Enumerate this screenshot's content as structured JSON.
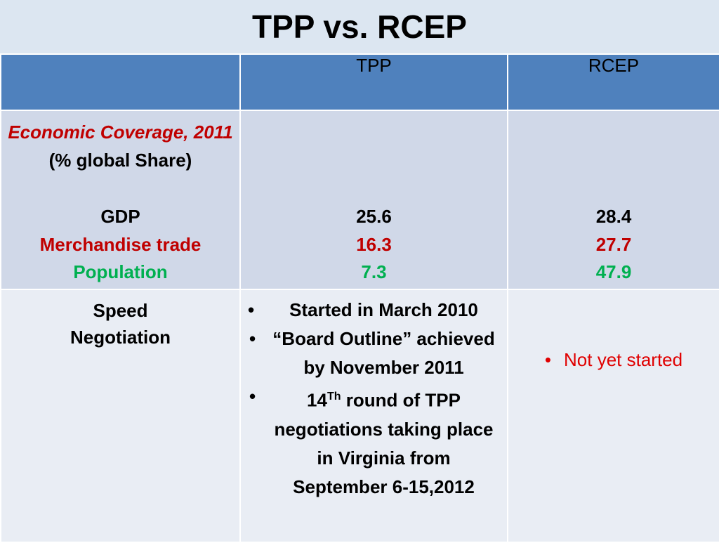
{
  "title": "TPP vs. RCEP",
  "header": {
    "col1": "",
    "col2": "TPP",
    "col3": "RCEP"
  },
  "row1": {
    "coverage_italic": "Economic Coverage, 2011",
    "coverage_rest": "(% global Share)",
    "gdp_label": "GDP",
    "merch_label": "Merchandise trade",
    "pop_label": "Population",
    "tpp": {
      "gdp": "25.6",
      "merch": "16.3",
      "pop": "7.3"
    },
    "rcep": {
      "gdp": "28.4",
      "merch": "27.7",
      "pop": "47.9"
    }
  },
  "row2": {
    "label_line1": "Speed",
    "label_line2": "Negotiation",
    "tpp_bullets": {
      "b1": "Started in March 2010",
      "b2": "“Board Outline” achieved by November 2011",
      "b3_pre": "14",
      "b3_sup": "Th",
      "b3_post": " round of TPP negotiations taking place in Virginia from September 6-15,2012"
    },
    "rcep_bullet": "Not yet started"
  },
  "colors": {
    "header_bg": "#4f81bd",
    "row1_bg": "#d0d8e8",
    "row2_bg": "#e9edf4",
    "red": "#c00000",
    "green": "#00b050"
  }
}
